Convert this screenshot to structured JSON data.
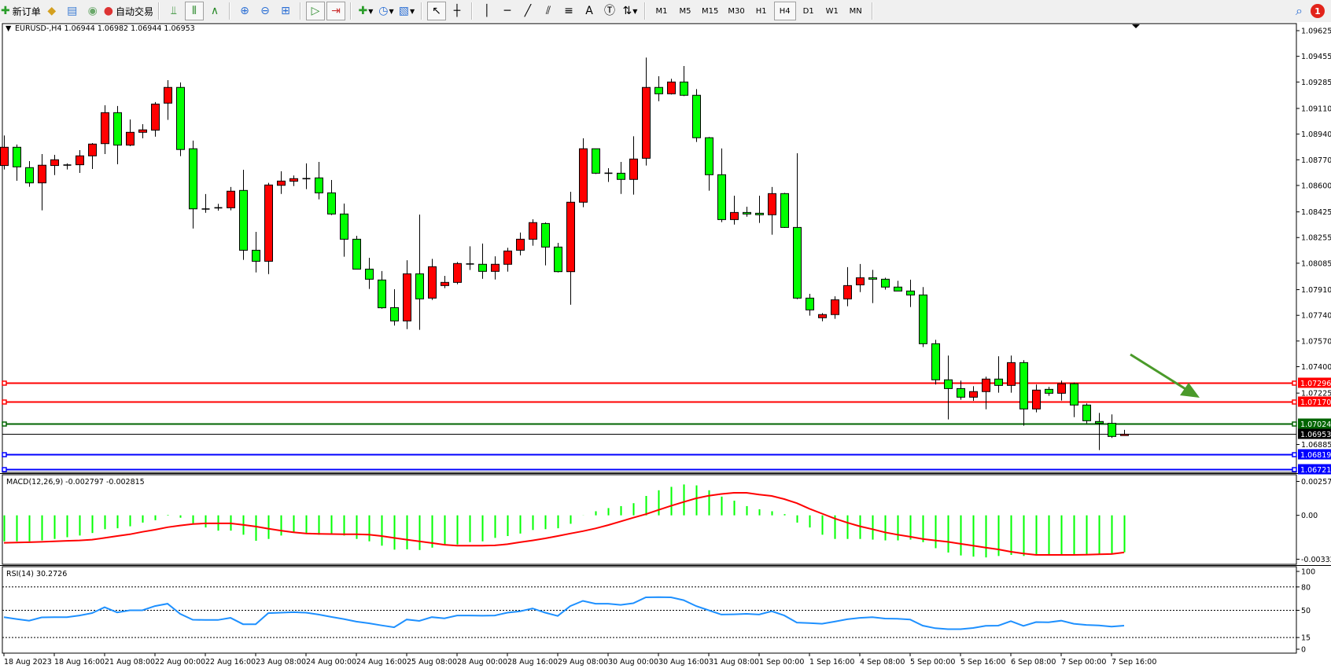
{
  "toolbar": {
    "new_order_label": "新订单",
    "auto_trading_label": "自动交易",
    "timeframes": [
      "M1",
      "M5",
      "M15",
      "M30",
      "H1",
      "H4",
      "D1",
      "W1",
      "MN"
    ],
    "active_timeframe": "H4",
    "notification_count": "1",
    "icons": [
      "new-order-icon",
      "market-watch-icon",
      "navigator-icon",
      "signals-icon",
      "auto-trading-icon",
      "bar-chart-icon",
      "candlestick-icon",
      "line-chart-icon",
      "zoom-in-icon",
      "zoom-out-icon",
      "tile-windows-icon",
      "auto-scroll-icon",
      "chart-shift-icon",
      "indicators-icon",
      "periods-clock-icon",
      "templates-icon",
      "cursor-icon",
      "crosshair-icon",
      "vertical-line-icon",
      "horizontal-line-icon",
      "trendline-icon",
      "equidistant-channel-icon",
      "fibonacci-icon",
      "text-icon",
      "text-label-icon",
      "arrows-icon",
      "search-icon",
      "notification-icon"
    ]
  },
  "chart": {
    "header": "EURUSD-,H4  1.06944 1.06982 1.06944 1.06953",
    "colors": {
      "bull": "#ff0000",
      "bear": "#00ff00",
      "wick": "#000000",
      "background": "#ffffff"
    }
  },
  "chart_data": [
    {
      "type": "candlestick",
      "symbol": "EURUSD-",
      "timeframe": "H4",
      "ohlc_format": [
        "open",
        "high",
        "low",
        "close"
      ],
      "ylim": [
        1.06721,
        1.09625
      ],
      "y_ticks": [
        "1.09625",
        "1.09455",
        "1.09285",
        "1.09110",
        "1.08940",
        "1.08770",
        "1.08600",
        "1.08425",
        "1.08255",
        "1.08085",
        "1.07910",
        "1.07740",
        "1.07570",
        "1.07400",
        "1.07225",
        "1.06885"
      ],
      "x_ticks": [
        "18 Aug 2023",
        "18 Aug 16:00",
        "21 Aug 08:00",
        "22 Aug 00:00",
        "22 Aug 16:00",
        "23 Aug 08:00",
        "24 Aug 00:00",
        "24 Aug 16:00",
        "25 Aug 08:00",
        "28 Aug 00:00",
        "28 Aug 16:00",
        "29 Aug 08:00",
        "30 Aug 00:00",
        "30 Aug 16:00",
        "31 Aug 08:00",
        "1 Sep 00:00",
        "1 Sep 16:00",
        "4 Sep 08:00",
        "5 Sep 00:00",
        "5 Sep 16:00",
        "6 Sep 08:00",
        "7 Sep 00:00",
        "7 Sep 16:00"
      ],
      "x_tick_every_bars": 4,
      "levels": [
        {
          "price": "1.07296",
          "color": "#ff0000"
        },
        {
          "price": "1.07170",
          "color": "#ff0000"
        },
        {
          "price": "1.07024",
          "color": "#006400"
        },
        {
          "price": "1.06953",
          "color": "#000000"
        },
        {
          "price": "1.06819",
          "color": "#0000ff"
        },
        {
          "price": "1.06721",
          "color": "#0000ff"
        }
      ],
      "annotation_arrow_color": "#4a9a2a",
      "candles": [
        [
          1.08732,
          1.08931,
          1.08706,
          1.08853
        ],
        [
          1.08853,
          1.08871,
          1.08631,
          1.08723
        ],
        [
          1.08718,
          1.08761,
          1.08591,
          1.08617
        ],
        [
          1.08617,
          1.08808,
          1.08435,
          1.08734
        ],
        [
          1.08732,
          1.08803,
          1.08669,
          1.0877
        ],
        [
          1.08735,
          1.08746,
          1.08706,
          1.08735
        ],
        [
          1.08737,
          1.08834,
          1.08683,
          1.08796
        ],
        [
          1.08796,
          1.08881,
          1.08709,
          1.08874
        ],
        [
          1.08877,
          1.09131,
          1.08808,
          1.09082
        ],
        [
          1.09082,
          1.09126,
          1.0874,
          1.08867
        ],
        [
          1.08867,
          1.09037,
          1.0886,
          1.08952
        ],
        [
          1.08952,
          1.09006,
          1.08912,
          1.08968
        ],
        [
          1.08966,
          1.09152,
          1.08923,
          1.09139
        ],
        [
          1.09145,
          1.09297,
          1.09034,
          1.09249
        ],
        [
          1.09249,
          1.09282,
          1.08794,
          1.08838
        ],
        [
          1.08843,
          1.08897,
          1.08315,
          1.08445
        ],
        [
          1.08444,
          1.08543,
          1.08419,
          1.08442
        ],
        [
          1.0845,
          1.08478,
          1.08433,
          1.08452
        ],
        [
          1.08452,
          1.0859,
          1.08435,
          1.08562
        ],
        [
          1.08567,
          1.08704,
          1.08107,
          1.08171
        ],
        [
          1.08171,
          1.08293,
          1.08024,
          1.08098
        ],
        [
          1.08098,
          1.08617,
          1.08013,
          1.08603
        ],
        [
          1.08601,
          1.08694,
          1.08544,
          1.08629
        ],
        [
          1.08628,
          1.08666,
          1.08596,
          1.08645
        ],
        [
          1.08645,
          1.08746,
          1.08576,
          1.08645
        ],
        [
          1.0865,
          1.08756,
          1.08508,
          1.08551
        ],
        [
          1.08551,
          1.08636,
          1.08404,
          1.08411
        ],
        [
          1.08411,
          1.0848,
          1.08128,
          1.08244
        ],
        [
          1.08244,
          1.08267,
          1.08046,
          1.08046
        ],
        [
          1.08046,
          1.08121,
          1.07915,
          1.07979
        ],
        [
          1.07974,
          1.08033,
          1.07784,
          1.0779
        ],
        [
          1.07791,
          1.07913,
          1.07672,
          1.07703
        ],
        [
          1.07703,
          1.08105,
          1.07649,
          1.08015
        ],
        [
          1.08015,
          1.08407,
          1.07644,
          1.07849
        ],
        [
          1.07854,
          1.08114,
          1.07842,
          1.08062
        ],
        [
          1.07937,
          1.08001,
          1.0792,
          1.07958
        ],
        [
          1.07958,
          1.08093,
          1.07946,
          1.08083
        ],
        [
          1.0808,
          1.08197,
          1.0804,
          1.0808
        ],
        [
          1.08078,
          1.08215,
          1.07982,
          1.08031
        ],
        [
          1.08031,
          1.08131,
          1.07977,
          1.08078
        ],
        [
          1.08078,
          1.08187,
          1.08029,
          1.08166
        ],
        [
          1.08171,
          1.08288,
          1.08137,
          1.08244
        ],
        [
          1.08244,
          1.08376,
          1.08201,
          1.08354
        ],
        [
          1.08348,
          1.08355,
          1.08071,
          1.08192
        ],
        [
          1.08192,
          1.0822,
          1.08024,
          1.08029
        ],
        [
          1.08029,
          1.08558,
          1.0781,
          1.08489
        ],
        [
          1.08489,
          1.08912,
          1.08456,
          1.08843
        ],
        [
          1.08843,
          1.08843,
          1.08676,
          1.08681
        ],
        [
          1.08681,
          1.08714,
          1.08623,
          1.08681
        ],
        [
          1.08681,
          1.08756,
          1.08544,
          1.0864
        ],
        [
          1.0864,
          1.08926,
          1.08539,
          1.08775
        ],
        [
          1.0878,
          1.09447,
          1.08732,
          1.09249
        ],
        [
          1.09249,
          1.09323,
          1.09158,
          1.09207
        ],
        [
          1.09207,
          1.09306,
          1.09202,
          1.09285
        ],
        [
          1.09285,
          1.09391,
          1.09192,
          1.09197
        ],
        [
          1.09197,
          1.09238,
          1.08888,
          1.08916
        ],
        [
          1.08916,
          1.08921,
          1.08565,
          1.08671
        ],
        [
          1.08671,
          1.08845,
          1.08357,
          1.08374
        ],
        [
          1.08374,
          1.08532,
          1.08341,
          1.08421
        ],
        [
          1.08421,
          1.08459,
          1.08393,
          1.08411
        ],
        [
          1.08416,
          1.08532,
          1.08352,
          1.08406
        ],
        [
          1.08406,
          1.0859,
          1.08274,
          1.08546
        ],
        [
          1.08546,
          1.08551,
          1.08319,
          1.08322
        ],
        [
          1.08322,
          1.08813,
          1.07847,
          1.07854
        ],
        [
          1.07854,
          1.07882,
          1.07738,
          1.07776
        ],
        [
          1.07724,
          1.07755,
          1.07701,
          1.07745
        ],
        [
          1.07745,
          1.07866,
          1.07717,
          1.07843
        ],
        [
          1.07849,
          1.08059,
          1.078,
          1.07937
        ],
        [
          1.07942,
          1.0808,
          1.07894,
          1.07989
        ],
        [
          1.07989,
          1.08041,
          1.07821,
          1.07979
        ],
        [
          1.07979,
          1.07989,
          1.0791,
          1.07927
        ],
        [
          1.07927,
          1.07969,
          1.07901,
          1.07901
        ],
        [
          1.07901,
          1.07976,
          1.07795,
          1.07875
        ],
        [
          1.07875,
          1.07927,
          1.0753,
          1.07552
        ],
        [
          1.07552,
          1.07578,
          1.07282,
          1.07313
        ],
        [
          1.07313,
          1.07474,
          1.07051,
          1.07255
        ],
        [
          1.07255,
          1.07308,
          1.07181,
          1.07198
        ],
        [
          1.07198,
          1.07271,
          1.07174,
          1.07235
        ],
        [
          1.07235,
          1.07334,
          1.07118,
          1.07318
        ],
        [
          1.07318,
          1.07469,
          1.07228,
          1.07276
        ],
        [
          1.07276,
          1.07474,
          1.07228,
          1.07427
        ],
        [
          1.07427,
          1.07443,
          1.07009,
          1.0712
        ],
        [
          1.0712,
          1.07282,
          1.07098,
          1.07245
        ],
        [
          1.0725,
          1.07266,
          1.07207,
          1.07224
        ],
        [
          1.07224,
          1.07308,
          1.07176,
          1.07287
        ],
        [
          1.07287,
          1.07295,
          1.07066,
          1.07146
        ],
        [
          1.07146,
          1.07157,
          1.07025,
          1.07042
        ],
        [
          1.07037,
          1.07094,
          1.06848,
          1.07025
        ],
        [
          1.07025,
          1.07084,
          1.06928,
          1.06938
        ],
        [
          1.06944,
          1.06982,
          1.06944,
          1.06953
        ]
      ]
    },
    {
      "type": "bar+line",
      "indicator_label": "MACD(12,26,9) -0.002797 -0.002815",
      "ylim": [
        -0.003326,
        0.002572
      ],
      "y_ticks": [
        "0.002572",
        "0.00",
        "-0.003326"
      ],
      "histogram_color": "#00ff00",
      "signal_color": "#ff0000",
      "macd": [
        -0.00197,
        -0.00197,
        -0.00197,
        -0.0019,
        -0.00179,
        -0.00166,
        -0.00153,
        -0.00134,
        -0.00105,
        -0.00098,
        -0.00083,
        -0.00055,
        -0.00037,
        4e-05,
        -0.00018,
        -0.00061,
        -0.00092,
        -0.00116,
        -0.00116,
        -0.00147,
        -0.00193,
        -0.00179,
        -0.00153,
        -0.00129,
        -0.00134,
        -0.00147,
        -0.00138,
        -0.00153,
        -0.00179,
        -0.00197,
        -0.0023,
        -0.0026,
        -0.00258,
        -0.00263,
        -0.00245,
        -0.00227,
        -0.00221,
        -0.00203,
        -0.00197,
        -0.00171,
        -0.00157,
        -0.00138,
        -0.00111,
        -0.00105,
        -0.00098,
        -0.00064,
        1e-05,
        0.00031,
        0.00055,
        0.0007,
        0.00092,
        0.00147,
        0.0019,
        0.00216,
        0.00234,
        0.00227,
        0.0019,
        0.00142,
        0.00111,
        0.0007,
        0.00046,
        0.00031,
        9e-05,
        -0.00055,
        -0.00092,
        -0.00147,
        -0.00179,
        -0.00179,
        -0.00179,
        -0.00184,
        -0.0019,
        -0.0019,
        -0.00184,
        -0.00203,
        -0.00249,
        -0.00282,
        -0.00304,
        -0.00313,
        -0.00319,
        -0.00308,
        -0.003,
        -0.00308,
        -0.00295,
        -0.00295,
        -0.00295,
        -0.00295,
        -0.00295,
        -0.00295,
        -0.0029,
        -0.002797
      ],
      "signal": [
        -0.00208,
        -0.00206,
        -0.00204,
        -0.00201,
        -0.00197,
        -0.00193,
        -0.0019,
        -0.00184,
        -0.00171,
        -0.00157,
        -0.00144,
        -0.00125,
        -0.00109,
        -0.0009,
        -0.00077,
        -0.00066,
        -0.00061,
        -0.00061,
        -0.00061,
        -0.00072,
        -0.00085,
        -0.00101,
        -0.00116,
        -0.00129,
        -0.00138,
        -0.0014,
        -0.00142,
        -0.00144,
        -0.00144,
        -0.00146,
        -0.00157,
        -0.00171,
        -0.00184,
        -0.00197,
        -0.0021,
        -0.00223,
        -0.0023,
        -0.0023,
        -0.0023,
        -0.00228,
        -0.00219,
        -0.00204,
        -0.0019,
        -0.00175,
        -0.00157,
        -0.00138,
        -0.0012,
        -0.00099,
        -0.00074,
        -0.00046,
        -0.00018,
        9e-05,
        0.00041,
        0.00072,
        0.00101,
        0.00129,
        0.00149,
        0.00162,
        0.00171,
        0.00171,
        0.00157,
        0.00147,
        0.00123,
        0.00092,
        0.0005,
        0.00013,
        -0.00024,
        -0.00055,
        -0.00083,
        -0.00105,
        -0.00129,
        -0.00147,
        -0.00162,
        -0.00179,
        -0.0019,
        -0.00201,
        -0.00216,
        -0.0023,
        -0.00245,
        -0.00258,
        -0.00276,
        -0.00289,
        -0.003,
        -0.003,
        -0.003,
        -0.003,
        -0.00298,
        -0.00295,
        -0.00293,
        -0.002815
      ]
    },
    {
      "type": "line",
      "indicator_label": "RSI(14) 30.2726",
      "ylim": [
        0,
        100
      ],
      "y_ticks": [
        "100",
        "80",
        "50",
        "15",
        "0"
      ],
      "levels": [
        80,
        50,
        15
      ],
      "line_color": "#1e90ff",
      "rsi": [
        41.2,
        38.8,
        36.7,
        40.9,
        41.2,
        41.2,
        43.3,
        46.4,
        53.9,
        47.3,
        50.0,
        50.0,
        55.5,
        58.5,
        45.5,
        37.9,
        37.6,
        37.6,
        40.3,
        32.1,
        32.1,
        46.4,
        47.0,
        47.6,
        47.0,
        44.5,
        41.5,
        38.8,
        35.5,
        33.3,
        30.6,
        28.2,
        38.2,
        36.4,
        41.2,
        39.7,
        43.3,
        43.3,
        43.0,
        43.3,
        47.0,
        48.8,
        52.4,
        47.0,
        42.7,
        55.5,
        62.1,
        58.5,
        58.5,
        57.0,
        59.1,
        66.7,
        67.0,
        66.7,
        63.0,
        55.5,
        50.0,
        44.5,
        44.8,
        45.5,
        44.5,
        48.8,
        43.3,
        34.2,
        33.6,
        32.7,
        35.5,
        38.5,
        40.3,
        41.2,
        39.4,
        39.1,
        38.2,
        30.3,
        27.0,
        25.8,
        25.8,
        27.3,
        30.0,
        30.3,
        36.1,
        30.0,
        34.8,
        34.5,
        36.7,
        32.7,
        31.2,
        30.6,
        29.1,
        30.2726
      ]
    }
  ]
}
